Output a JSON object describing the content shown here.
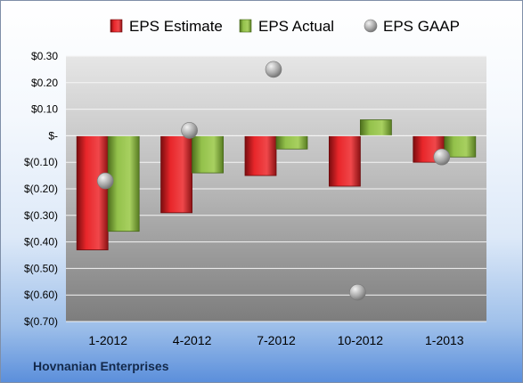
{
  "company": "Hovnanian Enterprises",
  "chart_data": {
    "type": "bar",
    "categories": [
      "1-2012",
      "4-2012",
      "7-2012",
      "10-2012",
      "1-2013"
    ],
    "series": [
      {
        "name": "EPS Estimate",
        "kind": "bar",
        "color": "#e8262a",
        "values": [
          -0.43,
          -0.29,
          -0.15,
          -0.19,
          -0.1
        ]
      },
      {
        "name": "EPS Actual",
        "kind": "bar",
        "color": "#93c14b",
        "values": [
          -0.36,
          -0.14,
          -0.05,
          0.06,
          -0.08
        ]
      },
      {
        "name": "EPS GAAP",
        "kind": "marker",
        "color": "#b5b5b5",
        "values": [
          -0.17,
          0.02,
          0.25,
          -0.59,
          -0.08
        ]
      }
    ],
    "ylim": [
      -0.7,
      0.3
    ],
    "ytick_values": [
      0.3,
      0.2,
      0.1,
      0.0,
      -0.1,
      -0.2,
      -0.3,
      -0.4,
      -0.5,
      -0.6,
      -0.7
    ],
    "ytick_labels": [
      "$0.30",
      "$0.20",
      "$0.10",
      "$-",
      "$(0.10)",
      "$(0.20)",
      "$(0.30)",
      "$(0.40)",
      "$(0.50)",
      "$(0.60)",
      "$(0.70)"
    ],
    "legend_position": "top",
    "grid": true
  }
}
